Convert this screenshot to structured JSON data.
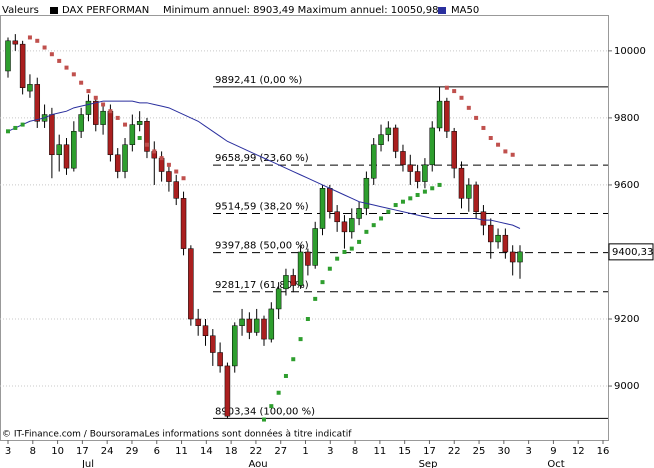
{
  "chart_data": {
    "type": "candlestick",
    "header_label": "Valeurs",
    "annotation": "Minimum annuel: 8903,49 Maximum annuel: 10050,98",
    "footer": "© IT-Finance.com / BoursoramaLes informations sont données à titre indicatif",
    "last_label": "9400,33",
    "ylim": [
      8839,
      10107
    ],
    "yticks": [
      9000,
      9200,
      9600,
      9800,
      10000
    ],
    "grid": true,
    "xtick_labels": [
      "3",
      "8",
      "10",
      "17",
      "24",
      "29",
      "6",
      "11",
      "14",
      "18",
      "22",
      "27",
      "1",
      "3",
      "8",
      "11",
      "15",
      "17",
      "22",
      "25",
      "30",
      "3",
      "9",
      "12",
      "16"
    ],
    "months": [
      "Jul",
      "Aou",
      "Sep",
      "Oct"
    ],
    "up_color": "#2e9e2e",
    "down_color": "#aa1f1f",
    "series": [
      {
        "name": "DAX PERFORMAN",
        "color": "#000000",
        "open": [
          9940,
          10030,
          10020,
          9880,
          9900,
          9790,
          9810,
          9690,
          9720,
          9650,
          9760,
          9810,
          9850,
          9780,
          9820,
          9690,
          9640,
          9720,
          9780,
          9790,
          9700,
          9680,
          9640,
          9610,
          9560,
          9410,
          9200,
          9180,
          9150,
          9100,
          9060,
          9060,
          9180,
          9200,
          9160,
          9200,
          9140,
          9230,
          9290,
          9330,
          9300,
          9400,
          9360,
          9470,
          9590,
          9520,
          9490,
          9460,
          9500,
          9530,
          9620,
          9720,
          9750,
          9770,
          9700,
          9660,
          9640,
          9610,
          9660,
          9770,
          9850,
          9760,
          9650,
          9560,
          9600,
          9520,
          9480,
          9430,
          9450,
          9400,
          9370
        ],
        "high": [
          10040,
          10050,
          10030,
          9930,
          9920,
          9840,
          9830,
          9750,
          9740,
          9790,
          9830,
          9870,
          9860,
          9840,
          9840,
          9710,
          9740,
          9810,
          9820,
          9800,
          9730,
          9700,
          9660,
          9630,
          9580,
          9420,
          9230,
          9200,
          9170,
          9130,
          9070,
          9190,
          9230,
          9220,
          9230,
          9210,
          9250,
          9310,
          9350,
          9350,
          9420,
          9410,
          9490,
          9600,
          9600,
          9540,
          9510,
          9530,
          9550,
          9640,
          9740,
          9780,
          9790,
          9780,
          9720,
          9690,
          9660,
          9680,
          9790,
          9892,
          9860,
          9770,
          9670,
          9620,
          9610,
          9540,
          9500,
          9470,
          9470,
          9420,
          9420
        ],
        "low": [
          9920,
          10000,
          9870,
          9860,
          9770,
          9770,
          9620,
          9640,
          9630,
          9640,
          9740,
          9790,
          9760,
          9750,
          9670,
          9620,
          9620,
          9700,
          9760,
          9680,
          9600,
          9610,
          9580,
          9540,
          9390,
          9180,
          9150,
          9120,
          9060,
          9040,
          8903,
          9040,
          9150,
          9140,
          9150,
          9120,
          9130,
          9200,
          9270,
          9280,
          9290,
          9330,
          9350,
          9450,
          9500,
          9460,
          9410,
          9440,
          9480,
          9510,
          9600,
          9700,
          9730,
          9680,
          9640,
          9600,
          9590,
          9590,
          9640,
          9760,
          9740,
          9620,
          9530,
          9520,
          9500,
          9450,
          9380,
          9410,
          9380,
          9330,
          9320
        ],
        "close": [
          10030,
          10020,
          9890,
          9900,
          9790,
          9810,
          9690,
          9720,
          9650,
          9760,
          9810,
          9850,
          9780,
          9820,
          9690,
          9640,
          9720,
          9780,
          9790,
          9700,
          9680,
          9640,
          9610,
          9560,
          9410,
          9200,
          9180,
          9150,
          9100,
          9060,
          8910,
          9180,
          9200,
          9160,
          9200,
          9140,
          9230,
          9290,
          9330,
          9300,
          9400,
          9360,
          9470,
          9590,
          9520,
          9490,
          9460,
          9500,
          9530,
          9620,
          9720,
          9750,
          9770,
          9700,
          9660,
          9640,
          9610,
          9660,
          9770,
          9850,
          9760,
          9650,
          9560,
          9600,
          9520,
          9480,
          9430,
          9450,
          9400,
          9370,
          9400.33
        ]
      },
      {
        "name": "MA50",
        "color": "#2a2f9e",
        "values": [
          9760,
          9770,
          9780,
          9790,
          9795,
          9800,
          9810,
          9815,
          9820,
          9830,
          9835,
          9840,
          9845,
          9850,
          9850,
          9850,
          9850,
          9850,
          9845,
          9845,
          9840,
          9835,
          9830,
          9820,
          9810,
          9800,
          9790,
          9775,
          9760,
          9745,
          9730,
          9720,
          9710,
          9700,
          9690,
          9680,
          9670,
          9660,
          9650,
          9640,
          9630,
          9620,
          9610,
          9600,
          9590,
          9580,
          9570,
          9560,
          9550,
          9545,
          9540,
          9535,
          9530,
          9525,
          9520,
          9515,
          9510,
          9505,
          9500,
          9500,
          9500,
          9500,
          9500,
          9500,
          9500,
          9495,
          9495,
          9490,
          9485,
          9480,
          9470
        ]
      }
    ],
    "sar": {
      "color_above": "#c0504d",
      "color_below": "#2e9e2e",
      "values": [
        9760,
        9770,
        9780,
        10040,
        10030,
        10010,
        9990,
        9970,
        9950,
        9930,
        9905,
        9880,
        9860,
        9840,
        9820,
        9800,
        9780,
        9760,
        9740,
        9720,
        9700,
        9680,
        9660,
        9640,
        9620,
        null,
        null,
        null,
        null,
        null,
        null,
        null,
        null,
        null,
        null,
        8900,
        8940,
        8980,
        9030,
        9080,
        9140,
        9200,
        9260,
        9310,
        9350,
        9380,
        9400,
        9410,
        9430,
        9460,
        9480,
        9500,
        9520,
        9540,
        9550,
        9560,
        9570,
        9580,
        9590,
        9600,
        9890,
        9880,
        9860,
        9830,
        9800,
        9770,
        9740,
        9720,
        9700,
        9690,
        null
      ]
    },
    "levels": [
      {
        "value": 9892.41,
        "label": "9892,41 (0,00 %)",
        "dashed": false
      },
      {
        "value": 9658.99,
        "label": "9658,99 (23,60 %)",
        "dashed": true
      },
      {
        "value": 9514.59,
        "label": "9514,59 (38,20 %)",
        "dashed": true
      },
      {
        "value": 9397.88,
        "label": "9397,88 (50,00 %)",
        "dashed": true
      },
      {
        "value": 9281.17,
        "label": "9281,17 (61,80 %)",
        "dashed": true
      },
      {
        "value": 8903.34,
        "label": "8903,34 (100,00 %)",
        "dashed": false
      }
    ]
  }
}
